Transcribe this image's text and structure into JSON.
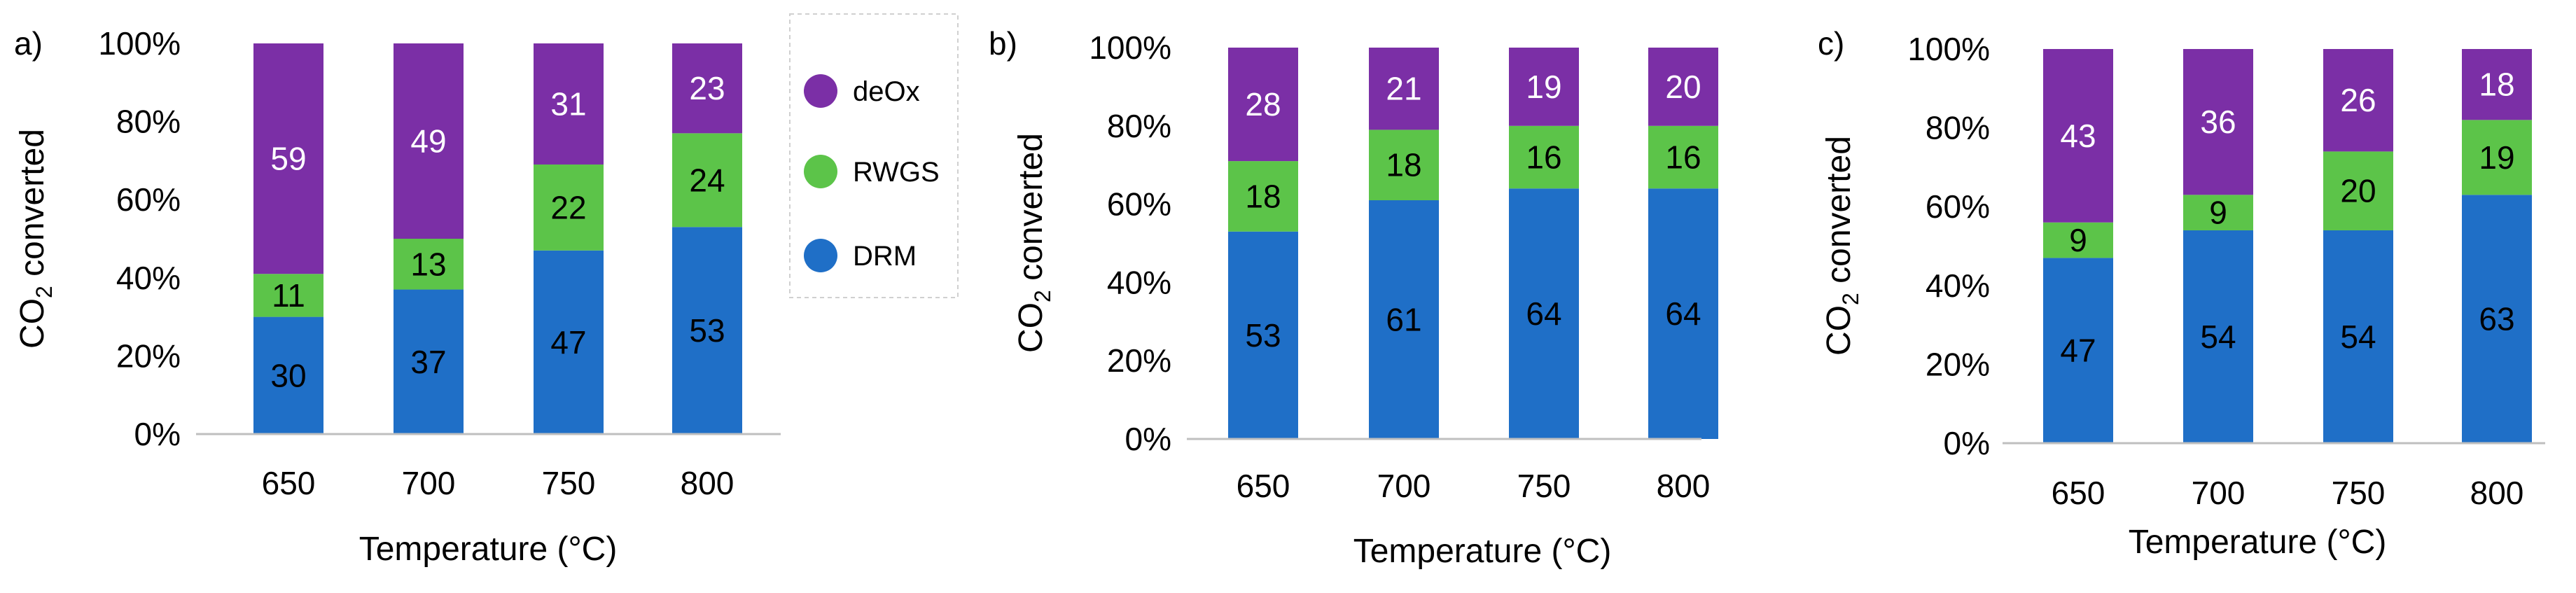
{
  "legend": {
    "items": [
      {
        "name": "deOx",
        "color": "#7b2fa6"
      },
      {
        "name": "RWGS",
        "color": "#5cc449"
      },
      {
        "name": "DRM",
        "color": "#1f6fc7"
      }
    ]
  },
  "colors": {
    "DRM": "#1f6fc7",
    "RWGS": "#5cc449",
    "deOx": "#7b2fa6",
    "axis": "#bfbfbf",
    "text": "#000000",
    "label_on_purple": "#ffffff"
  },
  "chart_data": [
    {
      "type": "bar",
      "stacked": true,
      "panel_label": "a)",
      "categories": [
        "650",
        "700",
        "750",
        "800"
      ],
      "series": [
        {
          "name": "DRM",
          "values": [
            30,
            37,
            47,
            53
          ]
        },
        {
          "name": "RWGS",
          "values": [
            11,
            13,
            22,
            24
          ]
        },
        {
          "name": "deOx",
          "values": [
            59,
            49,
            31,
            23
          ]
        }
      ],
      "xlabel": "Temperature (°C)",
      "ylabel_main": "CO",
      "ylabel_sub": "2",
      "ylabel_rest": " converted",
      "yticks": [
        "0%",
        "20%",
        "40%",
        "60%",
        "80%",
        "100%"
      ],
      "ylim": [
        0,
        100
      ]
    },
    {
      "type": "bar",
      "stacked": true,
      "panel_label": "b)",
      "categories": [
        "650",
        "700",
        "750",
        "800"
      ],
      "series": [
        {
          "name": "DRM",
          "values": [
            53,
            61,
            64,
            64
          ]
        },
        {
          "name": "RWGS",
          "values": [
            18,
            18,
            16,
            16
          ]
        },
        {
          "name": "deOx",
          "values": [
            28,
            21,
            19,
            20
          ]
        }
      ],
      "xlabel": "Temperature (°C)",
      "ylabel_main": "CO",
      "ylabel_sub": "2",
      "ylabel_rest": " converted",
      "yticks": [
        "0%",
        "20%",
        "40%",
        "60%",
        "80%",
        "100%"
      ],
      "ylim": [
        0,
        100
      ]
    },
    {
      "type": "bar",
      "stacked": true,
      "panel_label": "c)",
      "categories": [
        "650",
        "700",
        "750",
        "800"
      ],
      "series": [
        {
          "name": "DRM",
          "values": [
            47,
            54,
            54,
            63
          ]
        },
        {
          "name": "RWGS",
          "values": [
            9,
            9,
            20,
            19
          ]
        },
        {
          "name": "deOx",
          "values": [
            43,
            36,
            26,
            18
          ]
        }
      ],
      "xlabel": "Temperature (°C)",
      "ylabel_main": "CO",
      "ylabel_sub": "2",
      "ylabel_rest": " converted",
      "yticks": [
        "0%",
        "20%",
        "40%",
        "60%",
        "80%",
        "100%"
      ],
      "ylim": [
        0,
        100
      ]
    }
  ]
}
